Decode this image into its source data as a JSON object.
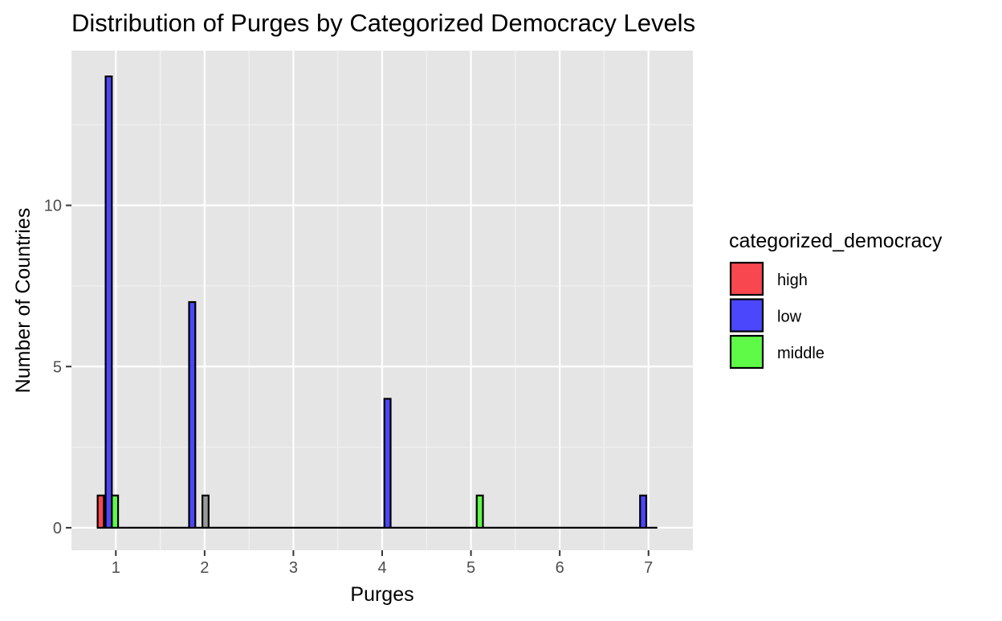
{
  "chart_data": {
    "type": "bar",
    "title": "Distribution of Purges by Categorized Democracy Levels",
    "xlabel": "Purges",
    "ylabel": "Number of Countries",
    "xlim": [
      0.5,
      7.5
    ],
    "ylim": [
      -0.7,
      14.8
    ],
    "x_ticks": [
      1,
      2,
      3,
      4,
      5,
      6,
      7
    ],
    "y_ticks": [
      0,
      5,
      10
    ],
    "grid": true,
    "legend": {
      "title": "categorized_democracy",
      "placement": "right",
      "entries": [
        {
          "label": "high",
          "color": "#F8474F"
        },
        {
          "label": "low",
          "color": "#4A47FC"
        },
        {
          "label": "middle",
          "color": "#5EFA47"
        }
      ]
    },
    "series": [
      {
        "name": "high",
        "color": "#F8474F",
        "points": [
          {
            "x": 0.83,
            "y": 1
          }
        ]
      },
      {
        "name": "low",
        "color": "#4A47FC",
        "points": [
          {
            "x": 0.92,
            "y": 14
          },
          {
            "x": 1.86,
            "y": 7
          },
          {
            "x": 4.06,
            "y": 4
          },
          {
            "x": 6.94,
            "y": 1
          }
        ]
      },
      {
        "name": "middle",
        "color": "#5EFA47",
        "points": [
          {
            "x": 0.99,
            "y": 1
          },
          {
            "x": 5.1,
            "y": 1
          }
        ]
      },
      {
        "name": "NA",
        "color": "#999999",
        "points": [
          {
            "x": 2.01,
            "y": 1
          }
        ]
      }
    ],
    "bar_width": 0.07,
    "baseline_range": [
      0.79,
      7.1
    ]
  }
}
